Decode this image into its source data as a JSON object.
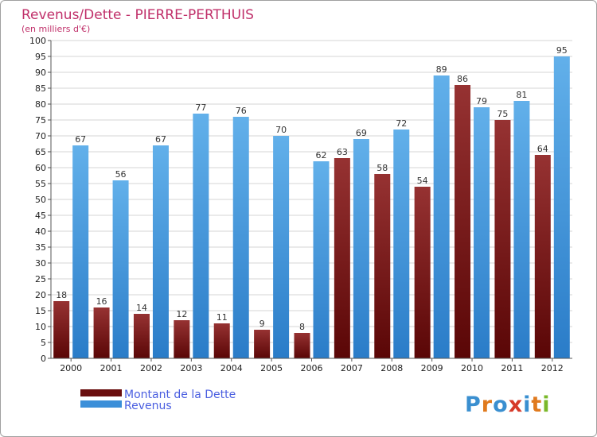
{
  "chart_data": {
    "type": "bar",
    "title": "Revenus/Dette - PIERRE-PERTHUIS",
    "subtitle": "(en milliers d'€)",
    "categories": [
      "2000",
      "2001",
      "2002",
      "2003",
      "2004",
      "2005",
      "2006",
      "2007",
      "2008",
      "2009",
      "2010",
      "2011",
      "2012"
    ],
    "series": [
      {
        "name": "Montant de la Dette",
        "values": [
          18,
          16,
          14,
          12,
          11,
          9,
          8,
          63,
          58,
          54,
          86,
          75,
          64
        ]
      },
      {
        "name": "Revenus",
        "values": [
          67,
          56,
          67,
          77,
          76,
          70,
          62,
          69,
          72,
          89,
          79,
          81,
          95
        ]
      }
    ],
    "ylim": [
      0,
      100
    ],
    "ytick_step": 5,
    "grid": true,
    "legend": "bottom-left",
    "xlabel": "",
    "ylabel": ""
  },
  "colors": {
    "debt": "#7a1616",
    "debt_light": "#9b3535",
    "revenue": "#3b8fd9",
    "revenue_light": "#5dade8",
    "title": "#c0306a",
    "legend_text": "#4a5ee0"
  },
  "brand": {
    "text": "Proxiti"
  }
}
